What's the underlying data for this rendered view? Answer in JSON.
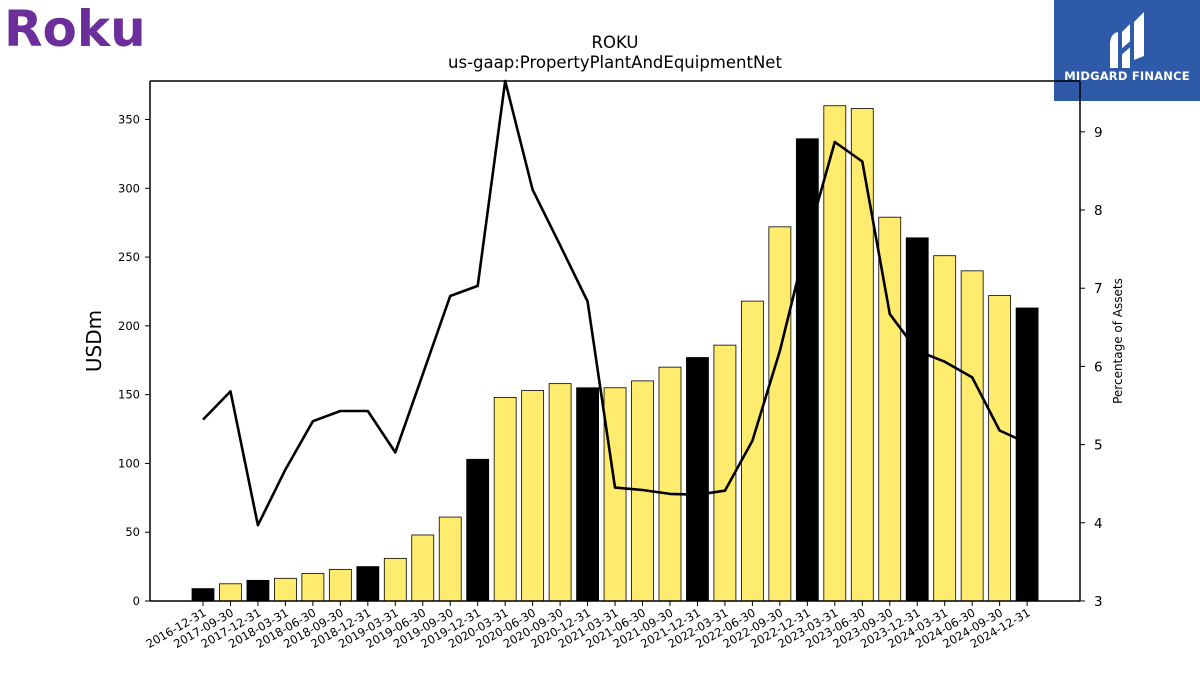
{
  "logos": {
    "left_text": "Roku",
    "left_color": "#6c2e9a",
    "right_text": "MIDGARD FINANCE",
    "right_bg": "#2f5aa8"
  },
  "chart_data": {
    "type": "bar",
    "title": "ROKU",
    "subtitle": "us-gaap:PropertyPlantAndEquipmentNet",
    "ylabel": "USDm",
    "y2label": "Percentage of Assets",
    "ylim": [
      0,
      378
    ],
    "y2lim": [
      3,
      9.65
    ],
    "yticks": [
      0,
      50,
      100,
      150,
      200,
      250,
      300,
      350
    ],
    "y2ticks": [
      3,
      4,
      5,
      6,
      7,
      8,
      9
    ],
    "colors": {
      "annual": "#000000",
      "quarterly": "#ffec6e",
      "line": "#000000"
    },
    "categories": [
      "2016-12-31",
      "2017-09-30",
      "2017-12-31",
      "2018-03-31",
      "2018-06-30",
      "2018-09-30",
      "2018-12-31",
      "2019-03-31",
      "2019-06-30",
      "2019-09-30",
      "2019-12-31",
      "2020-03-31",
      "2020-06-30",
      "2020-09-30",
      "2020-12-31",
      "2021-03-31",
      "2021-06-30",
      "2021-09-30",
      "2021-12-31",
      "2022-03-31",
      "2022-06-30",
      "2022-09-30",
      "2022-12-31",
      "2023-03-31",
      "2023-06-30",
      "2023-09-30",
      "2023-12-31",
      "2024-03-31",
      "2024-06-30",
      "2024-09-30",
      "2024-12-31"
    ],
    "series": [
      {
        "kind": "bar",
        "values": [
          9,
          12.5,
          15,
          16.5,
          20,
          23,
          25,
          31,
          48,
          61,
          103,
          148,
          153,
          158,
          155,
          155,
          160,
          170,
          177,
          186,
          218,
          272,
          336,
          360,
          358,
          279,
          264,
          251,
          240,
          222,
          213
        ],
        "annual": [
          true,
          false,
          true,
          false,
          false,
          false,
          true,
          false,
          false,
          false,
          true,
          false,
          false,
          false,
          true,
          false,
          false,
          false,
          true,
          false,
          false,
          false,
          true,
          false,
          false,
          false,
          true,
          false,
          false,
          false,
          true
        ]
      },
      {
        "kind": "line",
        "axis": "right",
        "values": [
          5.32,
          5.68,
          3.97,
          4.68,
          5.3,
          5.43,
          5.43,
          4.9,
          5.9,
          6.9,
          7.03,
          9.65,
          8.26,
          7.55,
          6.83,
          4.45,
          4.42,
          4.37,
          4.36,
          4.41,
          5.05,
          6.2,
          7.62,
          8.87,
          8.62,
          6.67,
          6.2,
          6.06,
          5.86,
          5.18,
          5.02
        ]
      }
    ]
  }
}
